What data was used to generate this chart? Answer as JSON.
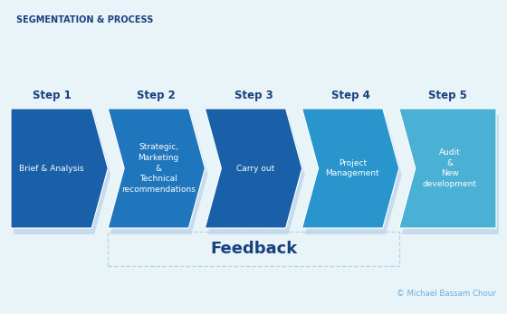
{
  "title": "SEGMENTATION & PROCESS",
  "background_color": "#e8f4f8",
  "steps": [
    {
      "label": "Step 1",
      "body": "Brief & Analysis",
      "color": "#1a60a8",
      "shadow_color": "#c0d8ed"
    },
    {
      "label": "Step 2",
      "body": "Strategic,\nMarketing\n&\nTechnical\nrecommendations",
      "color": "#2076bc",
      "shadow_color": "#c0d8ed"
    },
    {
      "label": "Step 3",
      "body": "Carry out",
      "color": "#1a60a8",
      "shadow_color": "#c0d8ed"
    },
    {
      "label": "Step 4",
      "body": "Project\nManagement",
      "color": "#2896cc",
      "shadow_color": "#c0d8ed"
    },
    {
      "label": "Step 5",
      "body": "Audit\n&\nNew\ndevelopment",
      "color": "#4ab0d4",
      "shadow_color": "#c0d8ed"
    }
  ],
  "feedback_text": "Feedback",
  "feedback_color": "#1a4080",
  "feedback_box_color": "#b8d4e8",
  "copyright_text": "© Michael Bassam Chour",
  "copyright_color": "#6aace0",
  "step_label_color": "#1a4080",
  "fig_width": 5.6,
  "fig_height": 3.47,
  "dpi": 100
}
